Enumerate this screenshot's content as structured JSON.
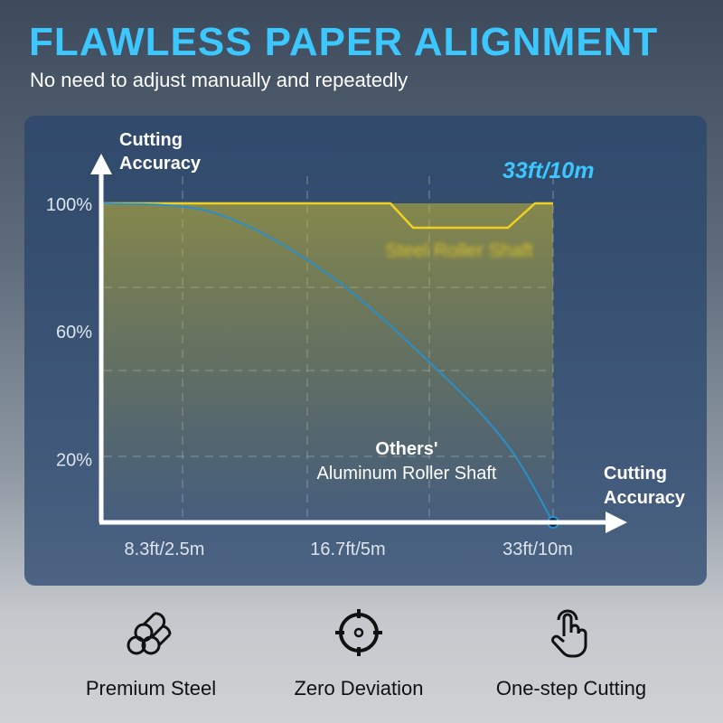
{
  "header": {
    "title": "FLAWLESS PAPER ALIGNMENT",
    "subtitle": "No need to adjust manually and repeatedly"
  },
  "chart_data": {
    "type": "line",
    "ylabel": "Cutting Accuracy",
    "xlabel": "Cutting Accuracy",
    "y_ticks": [
      "100%",
      "60%",
      "20%"
    ],
    "x_ticks": [
      "8.3ft/2.5m",
      "16.7ft/5m",
      "33ft/10m"
    ],
    "ylim": [
      0,
      100
    ],
    "grid": true,
    "series": [
      {
        "name": "Steel Roller Shaft",
        "color": "#f0d020",
        "x": [
          0,
          2.5,
          5,
          7.5,
          10
        ],
        "y": [
          100,
          100,
          100,
          100,
          100
        ]
      },
      {
        "name": "Others' Aluminum Roller Shaft",
        "color": "#2a8fc8",
        "x": [
          0,
          2.5,
          5,
          7.5,
          9,
          10
        ],
        "y": [
          100,
          97,
          78,
          47,
          24,
          0
        ]
      }
    ],
    "annotations": {
      "top_right": "33ft/10m",
      "others_title": "Others'",
      "others_sub": "Aluminum Roller Shaft",
      "steel_label": "Steel Roller Shaft"
    },
    "colors": {
      "steel": "#f0d020",
      "others": "#2a8fc8",
      "highlight": "#3cc7ff"
    }
  },
  "features": [
    {
      "icon": "steel-rods-icon",
      "label": "Premium Steel"
    },
    {
      "icon": "crosshair-icon",
      "label": "Zero Deviation"
    },
    {
      "icon": "hand-tap-icon",
      "label": "One-step Cutting"
    }
  ]
}
